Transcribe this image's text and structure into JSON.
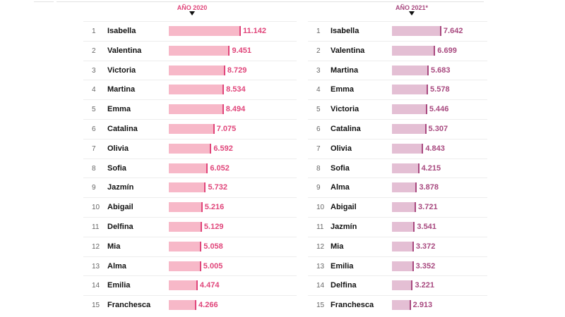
{
  "chart_data": [
    {
      "type": "bar",
      "title": "AÑO 2020",
      "colors": {
        "bar": "#f7b8c8",
        "edge": "#e0457a",
        "text": "#e0457a"
      },
      "ranks": [
        1,
        2,
        3,
        4,
        5,
        6,
        7,
        8,
        9,
        10,
        11,
        12,
        13,
        14,
        15
      ],
      "categories": [
        "Isabella",
        "Valentina",
        "Victoria",
        "Martina",
        "Emma",
        "Catalina",
        "Olivia",
        "Sofia",
        "Jazmín",
        "Abigail",
        "Delfina",
        "Mia",
        "Alma",
        "Emilia",
        "Franchesca"
      ],
      "labels": [
        "11.142",
        "9.451",
        "8.729",
        "8.534",
        "8.494",
        "7.075",
        "6.592",
        "6.052",
        "5.732",
        "5.216",
        "5.129",
        "5.058",
        "5.005",
        "4.474",
        "4.266"
      ],
      "values": [
        11142,
        9451,
        8729,
        8534,
        8494,
        7075,
        6592,
        6052,
        5732,
        5216,
        5129,
        5058,
        5005,
        4474,
        4266
      ]
    },
    {
      "type": "bar",
      "title": "AÑO 2021*",
      "colors": {
        "bar": "#e4bfd4",
        "edge": "#a8497f",
        "text": "#a8497f"
      },
      "ranks": [
        1,
        2,
        3,
        4,
        5,
        6,
        7,
        8,
        9,
        10,
        11,
        12,
        13,
        14,
        15
      ],
      "categories": [
        "Isabella",
        "Valentina",
        "Martina",
        "Emma",
        "Victoria",
        "Catalina",
        "Olivia",
        "Sofia",
        "Alma",
        "Abigail",
        "Jazmín",
        "Mia",
        "Emilia",
        "Delfina",
        "Franchesca"
      ],
      "labels": [
        "7.642",
        "6.699",
        "5.683",
        "5.578",
        "5.446",
        "5.307",
        "4.843",
        "4.215",
        "3.878",
        "3.721",
        "3.541",
        "3.372",
        "3.352",
        "3.221",
        "2.913"
      ],
      "values": [
        7642,
        6699,
        5683,
        5578,
        5446,
        5307,
        4843,
        4215,
        3878,
        3721,
        3541,
        3372,
        3352,
        3221,
        2913
      ]
    }
  ]
}
